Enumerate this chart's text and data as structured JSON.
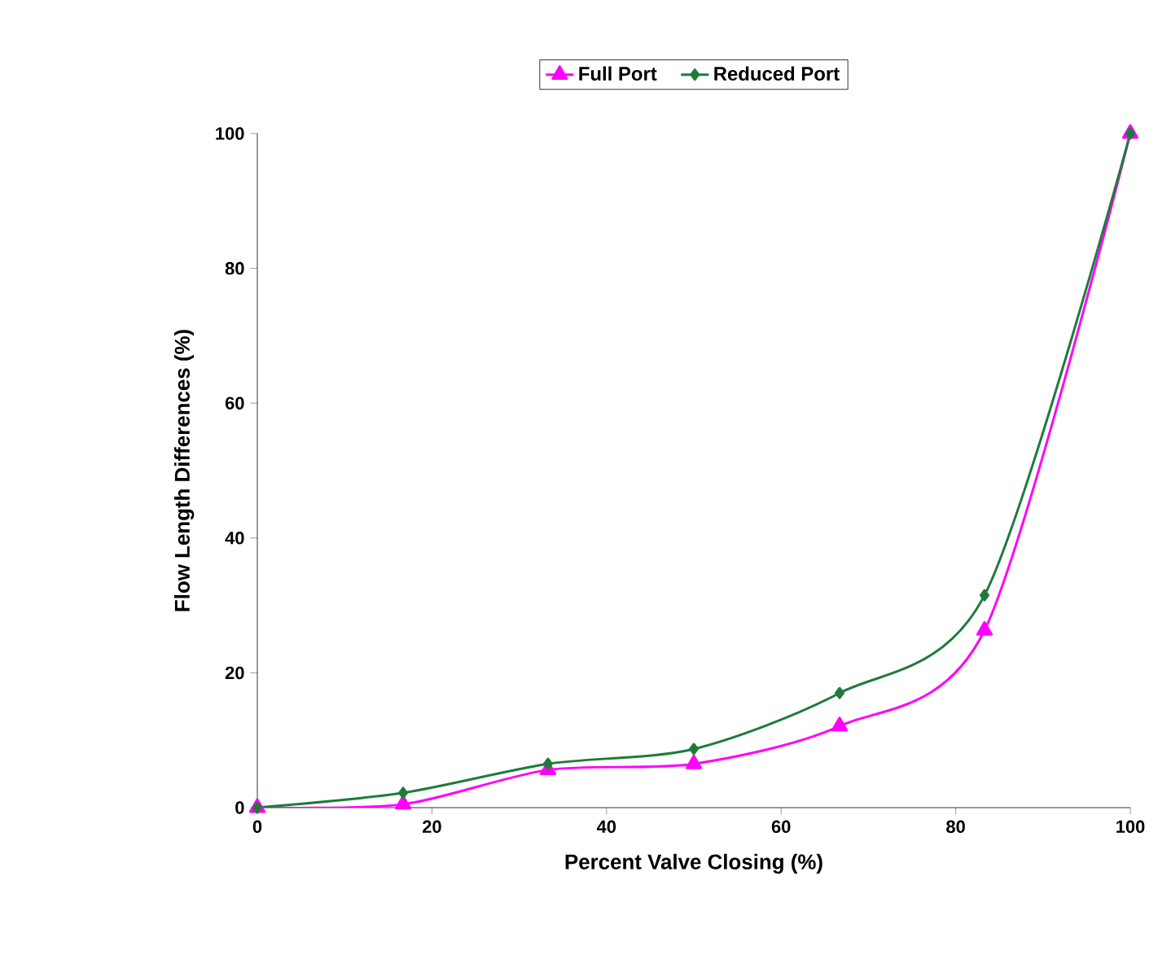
{
  "chart_data": {
    "type": "line",
    "xlabel": "Percent Valve Closing (%)",
    "ylabel": "Flow Length Differences (%)",
    "x": [
      0,
      16.7,
      33.3,
      50,
      66.7,
      83.3,
      100
    ],
    "series": [
      {
        "name": "Full Port",
        "color": "#ff00ff",
        "marker": "triangle",
        "values": [
          0,
          0.5,
          5.6,
          6.5,
          12.1,
          26.3,
          100
        ]
      },
      {
        "name": "Reduced Port",
        "color": "#1e7b3c",
        "marker": "diamond",
        "values": [
          0,
          2.2,
          6.5,
          8.7,
          17,
          31.5,
          100
        ]
      }
    ],
    "xlim": [
      0,
      100
    ],
    "ylim": [
      0,
      100
    ],
    "xticks": [
      0,
      20,
      40,
      60,
      80,
      100
    ],
    "yticks": [
      0,
      20,
      40,
      60,
      80,
      100
    ],
    "legend": "top",
    "line_style": "solid",
    "grid": false
  }
}
